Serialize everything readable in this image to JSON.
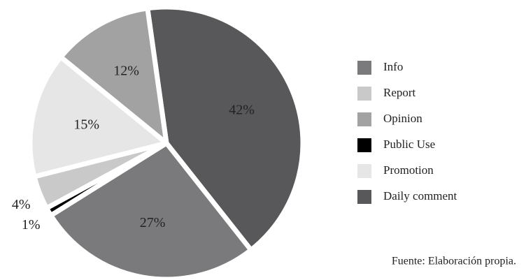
{
  "chart_data": {
    "type": "pie",
    "categories": [
      "Info",
      "Report",
      "Opinion",
      "Public Use",
      "Promotion",
      "Daily comment"
    ],
    "values": [
      27,
      4,
      12,
      1,
      15,
      42
    ],
    "value_labels": [
      "27%",
      "4%",
      "12%",
      "1%",
      "15%",
      "42%"
    ],
    "colors": [
      "#7a7a7c",
      "#c9c9c9",
      "#a2a2a3",
      "#000000",
      "#e6e6e6",
      "#58585a"
    ],
    "legend": "right",
    "source": "Fuente: Elaboración propia."
  }
}
